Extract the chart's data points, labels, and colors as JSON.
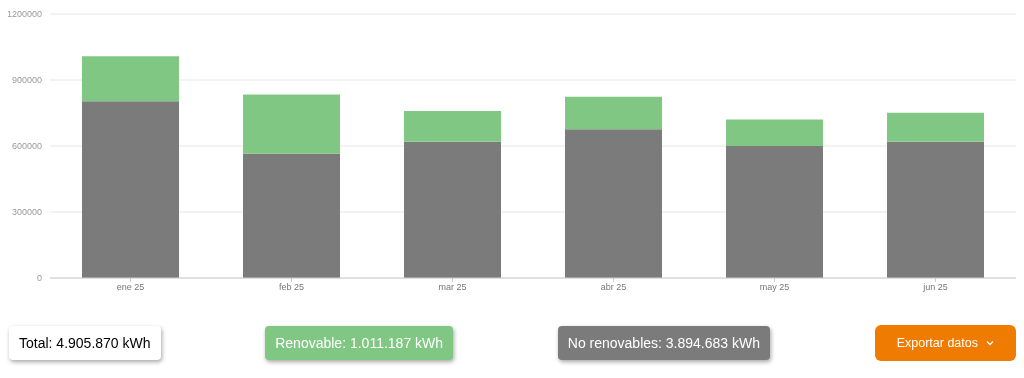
{
  "chart_data": {
    "type": "bar",
    "stacked": true,
    "categories": [
      "ene 25",
      "feb 25",
      "mar 25",
      "abr 25",
      "may 25",
      "jun 25"
    ],
    "series": [
      {
        "color": "#7b7b7b",
        "values": [
          803000,
          565000,
          619000,
          676000,
          600000,
          619000
        ]
      },
      {
        "color": "#81c784",
        "values": [
          205000,
          269000,
          140000,
          148000,
          120000,
          132000
        ]
      }
    ],
    "ylim": [
      0,
      1200000
    ],
    "yticks": [
      0,
      300000,
      600000,
      900000,
      1200000
    ],
    "grid": "y",
    "annotations": [
      "Total: 4.905.870 kWh",
      "Renovable: 1.011.187 kWh",
      "No renovables: 3.894.683 kWh",
      "Exportar datos"
    ]
  }
}
